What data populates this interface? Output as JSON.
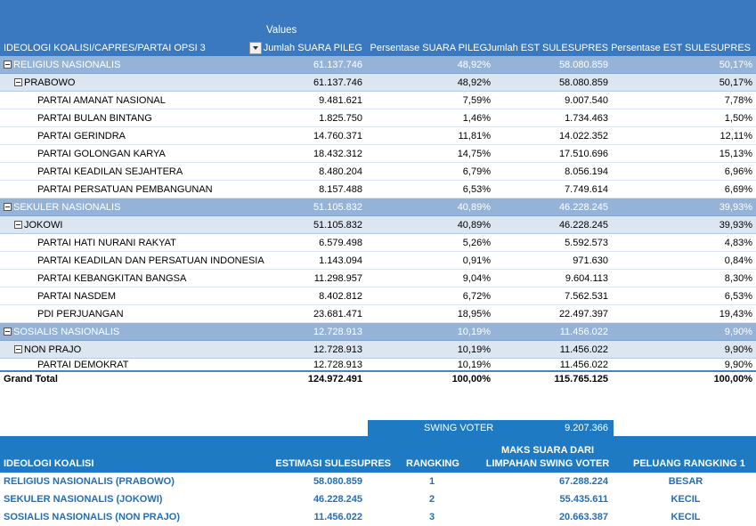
{
  "pivot": {
    "values_label": "Values",
    "headers": {
      "row_field": "IDEOLOGI KOALISI/CAPRES/PARTAI OPSI 3",
      "col1": "Jumlah SUARA PILEG",
      "col2": "Persentase SUARA PILEG",
      "col3": "Jumlah EST SULESUPRES",
      "col4": "Persentase EST SULESUPRES"
    },
    "rows": [
      {
        "level": 0,
        "label": "RELIGIUS NASIONALIS",
        "v1": "61.137.746",
        "v2": "48,92%",
        "v3": "58.080.859",
        "v4": "50,17%"
      },
      {
        "level": 1,
        "label": "PRABOWO",
        "v1": "61.137.746",
        "v2": "48,92%",
        "v3": "58.080.859",
        "v4": "50,17%"
      },
      {
        "level": 2,
        "label": "PARTAI AMANAT NASIONAL",
        "v1": "9.481.621",
        "v2": "7,59%",
        "v3": "9.007.540",
        "v4": "7,78%"
      },
      {
        "level": 2,
        "label": "PARTAI BULAN BINTANG",
        "v1": "1.825.750",
        "v2": "1,46%",
        "v3": "1.734.463",
        "v4": "1,50%"
      },
      {
        "level": 2,
        "label": "PARTAI GERINDRA",
        "v1": "14.760.371",
        "v2": "11,81%",
        "v3": "14.022.352",
        "v4": "12,11%"
      },
      {
        "level": 2,
        "label": "PARTAI GOLONGAN KARYA",
        "v1": "18.432.312",
        "v2": "14,75%",
        "v3": "17.510.696",
        "v4": "15,13%"
      },
      {
        "level": 2,
        "label": "PARTAI KEADILAN SEJAHTERA",
        "v1": "8.480.204",
        "v2": "6,79%",
        "v3": "8.056.194",
        "v4": "6,96%"
      },
      {
        "level": 2,
        "label": "PARTAI PERSATUAN PEMBANGUNAN",
        "v1": "8.157.488",
        "v2": "6,53%",
        "v3": "7.749.614",
        "v4": "6,69%"
      },
      {
        "level": 0,
        "label": "SEKULER NASIONALIS",
        "v1": "51.105.832",
        "v2": "40,89%",
        "v3": "46.228.245",
        "v4": "39,93%"
      },
      {
        "level": 1,
        "label": "JOKOWI",
        "v1": "51.105.832",
        "v2": "40,89%",
        "v3": "46.228.245",
        "v4": "39,93%"
      },
      {
        "level": 2,
        "label": "PARTAI HATI NURANI RAKYAT",
        "v1": "6.579.498",
        "v2": "5,26%",
        "v3": "5.592.573",
        "v4": "4,83%"
      },
      {
        "level": 2,
        "label": "PARTAI KEADILAN DAN PERSATUAN INDONESIA",
        "v1": "1.143.094",
        "v2": "0,91%",
        "v3": "971.630",
        "v4": "0,84%"
      },
      {
        "level": 2,
        "label": "PARTAI KEBANGKITAN BANGSA",
        "v1": "11.298.957",
        "v2": "9,04%",
        "v3": "9.604.113",
        "v4": "8,30%"
      },
      {
        "level": 2,
        "label": "PARTAI NASDEM",
        "v1": "8.402.812",
        "v2": "6,72%",
        "v3": "7.562.531",
        "v4": "6,53%"
      },
      {
        "level": 2,
        "label": "PDI PERJUANGAN",
        "v1": "23.681.471",
        "v2": "18,95%",
        "v3": "22.497.397",
        "v4": "19,43%"
      },
      {
        "level": 0,
        "label": "SOSIALIS NASIONALIS",
        "v1": "12.728.913",
        "v2": "10,19%",
        "v3": "11.456.022",
        "v4": "9,90%"
      },
      {
        "level": 1,
        "label": "NON PRAJO",
        "v1": "12.728.913",
        "v2": "10,19%",
        "v3": "11.456.022",
        "v4": "9,90%"
      },
      {
        "level": 2,
        "label": "PARTAI DEMOKRAT",
        "v1": "12.728.913",
        "v2": "10,19%",
        "v3": "11.456.022",
        "v4": "9,90%"
      }
    ],
    "grand_total": {
      "label": "Grand Total",
      "v1": "124.972.491",
      "v2": "100,00%",
      "v3": "115.765.125",
      "v4": "100,00%"
    }
  },
  "swing": {
    "label": "SWING VOTER",
    "value": "9.207.366"
  },
  "summary": {
    "headers": {
      "h0": "IDEOLOGI KOALISI",
      "h1": "ESTIMASI SULESUPRES",
      "h2": "RANGKING",
      "h3": "MAKS SUARA DARI LIMPAHAN SWING VOTER",
      "h4": "PELUANG RANGKING 1"
    },
    "rows": [
      {
        "name": "RELIGIUS NASIONALIS (PRABOWO)",
        "estimasi": "58.080.859",
        "rank": "1",
        "maks": "67.288.224",
        "peluang": "BESAR"
      },
      {
        "name": "SEKULER NASIONALIS (JOKOWI)",
        "estimasi": "46.228.245",
        "rank": "2",
        "maks": "55.435.611",
        "peluang": "KECIL"
      },
      {
        "name": "SOSIALIS NASIONALIS (NON PRAJO)",
        "estimasi": "11.456.022",
        "rank": "3",
        "maks": "20.663.387",
        "peluang": "KECIL"
      }
    ]
  },
  "colors": {
    "header_blue": "#3a78c0",
    "level0_bg": "#95b3d7",
    "level1_bg": "#dce6f1",
    "summary_blue": "#1f7ac4",
    "summary_text": "#1f6fc0"
  }
}
